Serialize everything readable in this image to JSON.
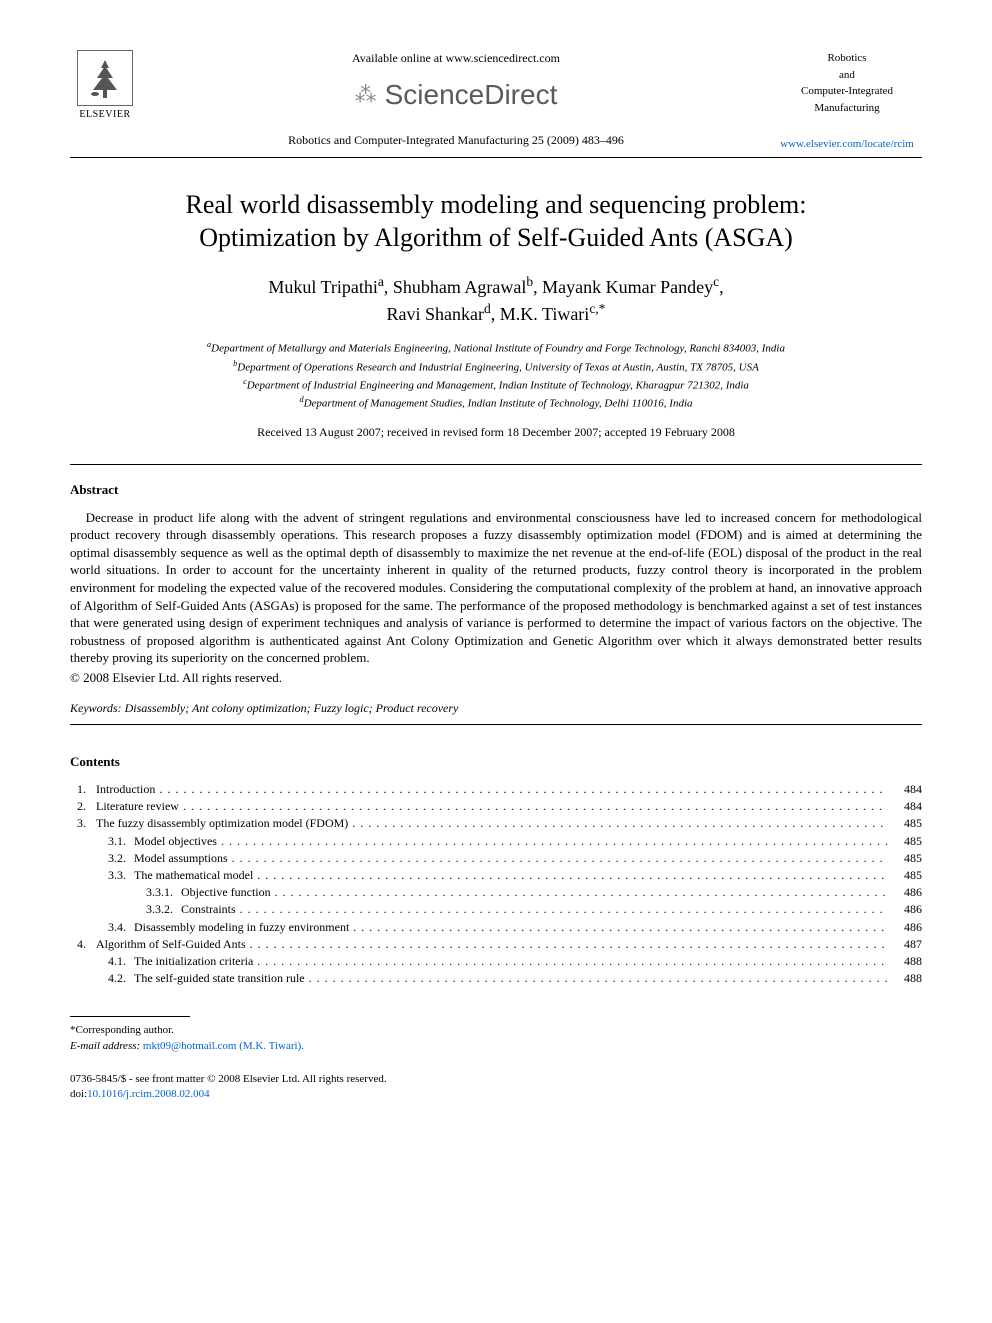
{
  "header": {
    "available_text": "Available online at www.sciencedirect.com",
    "sciencedirect_label": "ScienceDirect",
    "journal_ref": "Robotics and Computer-Integrated Manufacturing 25 (2009) 483–496",
    "elsevier_label": "ELSEVIER",
    "journal_name_lines": [
      "Robotics",
      "and",
      "Computer-Integrated",
      "Manufacturing"
    ],
    "journal_url": "www.elsevier.com/locate/rcim"
  },
  "title_line1": "Real world disassembly modeling and sequencing problem:",
  "title_line2": "Optimization by Algorithm of Self-Guided Ants (ASGA)",
  "authors": [
    {
      "name": "Mukul Tripathi",
      "aff": "a"
    },
    {
      "name": "Shubham Agrawal",
      "aff": "b"
    },
    {
      "name": "Mayank Kumar Pandey",
      "aff": "c"
    },
    {
      "name": "Ravi Shankar",
      "aff": "d"
    },
    {
      "name": "M.K. Tiwari",
      "aff": "c,*"
    }
  ],
  "affiliations": {
    "a": "Department of Metallurgy and Materials Engineering, National Institute of Foundry and Forge Technology, Ranchi 834003, India",
    "b": "Department of Operations Research and Industrial Engineering, University of Texas at Austin, Austin, TX 78705, USA",
    "c": "Department of Industrial Engineering and Management, Indian Institute of Technology, Kharagpur 721302, India",
    "d": "Department of Management Studies, Indian Institute of Technology, Delhi 110016, India"
  },
  "dates": "Received 13 August 2007; received in revised form 18 December 2007; accepted 19 February 2008",
  "abstract_heading": "Abstract",
  "abstract": "Decrease in product life along with the advent of stringent regulations and environmental consciousness have led to increased concern for methodological product recovery through disassembly operations. This research proposes a fuzzy disassembly optimization model (FDOM) and is aimed at determining the optimal disassembly sequence as well as the optimal depth of disassembly to maximize the net revenue at the end-of-life (EOL) disposal of the product in the real world situations. In order to account for the uncertainty inherent in quality of the returned products, fuzzy control theory is incorporated in the problem environment for modeling the expected value of the recovered modules. Considering the computational complexity of the problem at hand, an innovative approach of Algorithm of Self-Guided Ants (ASGAs) is proposed for the same. The performance of the proposed methodology is benchmarked against a set of test instances that were generated using design of experiment techniques and analysis of variance is performed to determine the impact of various factors on the objective. The robustness of proposed algorithm is authenticated against Ant Colony Optimization and Genetic Algorithm over which it always demonstrated better results thereby proving its superiority on the concerned problem.",
  "copyright": "© 2008 Elsevier Ltd. All rights reserved.",
  "keywords_label": "Keywords:",
  "keywords": "Disassembly; Ant colony optimization; Fuzzy logic; Product recovery",
  "contents_heading": "Contents",
  "toc": [
    {
      "num": "1.",
      "label": "Introduction",
      "page": "484",
      "level": 1
    },
    {
      "num": "2.",
      "label": "Literature review",
      "page": "484",
      "level": 1
    },
    {
      "num": "3.",
      "label": "The fuzzy disassembly optimization model (FDOM)",
      "page": "485",
      "level": 1
    },
    {
      "num": "3.1.",
      "label": "Model objectives",
      "page": "485",
      "level": 2
    },
    {
      "num": "3.2.",
      "label": "Model assumptions",
      "page": "485",
      "level": 2
    },
    {
      "num": "3.3.",
      "label": "The mathematical model",
      "page": "485",
      "level": 2
    },
    {
      "num": "3.3.1.",
      "label": "Objective function",
      "page": "486",
      "level": 3
    },
    {
      "num": "3.3.2.",
      "label": "Constraints",
      "page": "486",
      "level": 3
    },
    {
      "num": "3.4.",
      "label": "Disassembly modeling in fuzzy environment",
      "page": "486",
      "level": 2
    },
    {
      "num": "4.",
      "label": "Algorithm of Self-Guided Ants",
      "page": "487",
      "level": 1
    },
    {
      "num": "4.1.",
      "label": "The initialization criteria",
      "page": "488",
      "level": 2
    },
    {
      "num": "4.2.",
      "label": "The self-guided state transition rule",
      "page": "488",
      "level": 2
    }
  ],
  "footnote": {
    "corresponding": "*Corresponding author.",
    "email_label": "E-mail address:",
    "email": "mkt09@hotmail.com (M.K. Tiwari)."
  },
  "footer": {
    "line1": "0736-5845/$ - see front matter © 2008 Elsevier Ltd. All rights reserved.",
    "doi_label": "doi:",
    "doi": "10.1016/j.rcim.2008.02.004"
  },
  "colors": {
    "text": "#000000",
    "link": "#0066cc",
    "background": "#ffffff",
    "sd_gray": "#5a5a5a"
  }
}
